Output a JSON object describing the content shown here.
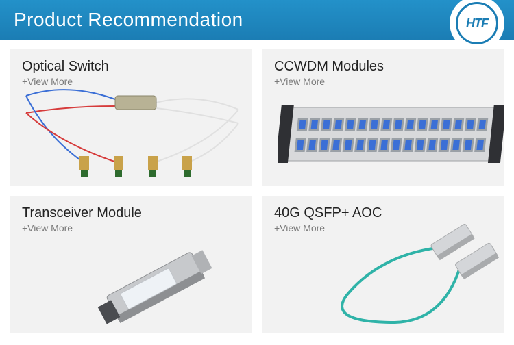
{
  "header": {
    "title": "Product Recommendation",
    "title_color": "#ffffff",
    "title_fontsize": 28,
    "background_gradient": [
      "#2391c9",
      "#1b7db4"
    ],
    "logo_text": "HTF",
    "logo_border_color": "#1b7db4",
    "logo_text_color": "#1b7db4"
  },
  "cards": [
    {
      "title": "Optical Switch",
      "view_more": "+View More",
      "title_color": "#222222",
      "more_color": "#7a7a7a",
      "background": "#f2f2f2",
      "product": {
        "type": "optical-switch",
        "fiber_colors": [
          "#3b6fd6",
          "#d63b3b",
          "#e8e8e8"
        ],
        "connector_body": "#c9a24a",
        "connector_tip": "#2e6b2e",
        "switch_body": "#b8b295"
      }
    },
    {
      "title": "CCWDM Modules",
      "view_more": "+View More",
      "title_color": "#222222",
      "more_color": "#7a7a7a",
      "background": "#f2f2f2",
      "product": {
        "type": "rack-module",
        "chassis_color": "#2f3034",
        "face_color": "#d8d9db",
        "port_color": "#3b6fd6",
        "port_frame": "#9aa0a6",
        "port_rows": 2,
        "ports_per_row": 16
      }
    },
    {
      "title": "Transceiver Module",
      "view_more": "+View More",
      "title_color": "#222222",
      "more_color": "#7a7a7a",
      "background": "#f2f2f2",
      "product": {
        "type": "sfp-transceiver",
        "body_color": "#c7c9cc",
        "body_shadow": "#8d8f92",
        "label_color": "#eef2f6",
        "latch_color": "#4a4c50"
      }
    },
    {
      "title": "40G QSFP+ AOC",
      "view_more": "+View More",
      "title_color": "#222222",
      "more_color": "#7a7a7a",
      "background": "#f2f2f2",
      "product": {
        "type": "aoc-cable",
        "cable_color": "#2fb3a8",
        "connector_color": "#d4d6d9",
        "connector_shadow": "#a9abad"
      }
    }
  ]
}
